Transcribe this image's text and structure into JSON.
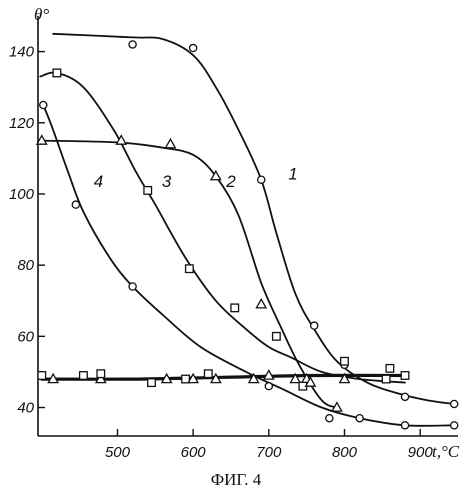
{
  "caption": "ФИГ. 4",
  "chart_data": {
    "type": "line",
    "title": "",
    "xlabel": "t,°C",
    "ylabel": "θ°",
    "xlim": [
      395,
      950
    ],
    "ylim": [
      32,
      150
    ],
    "xticks": [
      500,
      600,
      700,
      800,
      900
    ],
    "yticks": [
      40,
      60,
      80,
      100,
      120,
      140
    ],
    "xtick_labels": [
      "500",
      "600",
      "700",
      "800",
      "900"
    ],
    "ytick_labels": [
      "40",
      "60",
      "80",
      "100",
      "120",
      "140"
    ],
    "grid": false,
    "series": [
      {
        "name": "1",
        "marker": "circle",
        "curve": [
          [
            415,
            145
          ],
          [
            520,
            144
          ],
          [
            560,
            143.5
          ],
          [
            600,
            139
          ],
          [
            630,
            130
          ],
          [
            660,
            118
          ],
          [
            690,
            104
          ],
          [
            710,
            89
          ],
          [
            735,
            72
          ],
          [
            760,
            62
          ],
          [
            790,
            53
          ],
          [
            830,
            47
          ],
          [
            870,
            44
          ],
          [
            910,
            42
          ],
          [
            945,
            41
          ]
        ],
        "points": [
          [
            520,
            142
          ],
          [
            600,
            141
          ],
          [
            690,
            104
          ],
          [
            760,
            63
          ],
          [
            800,
            52
          ],
          [
            880,
            43
          ],
          [
            945,
            41
          ]
        ]
      },
      {
        "name": "2",
        "marker": "triangle",
        "curve": [
          [
            400,
            115
          ],
          [
            500,
            114.5
          ],
          [
            560,
            113
          ],
          [
            600,
            111
          ],
          [
            630,
            105
          ],
          [
            660,
            94
          ],
          [
            690,
            75
          ],
          [
            715,
            63
          ],
          [
            740,
            52
          ],
          [
            770,
            42
          ],
          [
            790,
            40
          ]
        ],
        "points": [
          [
            400,
            115
          ],
          [
            505,
            115
          ],
          [
            570,
            114
          ],
          [
            630,
            105
          ],
          [
            690,
            69
          ],
          [
            750,
            48
          ],
          [
            790,
            40
          ]
        ]
      },
      {
        "name": "3",
        "marker": "square",
        "curve": [
          [
            398,
            133
          ],
          [
            420,
            134
          ],
          [
            455,
            130
          ],
          [
            495,
            118
          ],
          [
            525,
            106
          ],
          [
            550,
            97
          ],
          [
            590,
            82
          ],
          [
            630,
            70
          ],
          [
            670,
            62
          ],
          [
            700,
            57
          ],
          [
            730,
            54
          ],
          [
            770,
            50
          ],
          [
            820,
            48
          ],
          [
            880,
            47
          ]
        ],
        "points": [
          [
            420,
            134
          ],
          [
            540,
            101
          ],
          [
            595,
            79
          ],
          [
            655,
            68
          ],
          [
            710,
            60
          ],
          [
            800,
            53
          ],
          [
            860,
            51
          ],
          [
            880,
            49
          ]
        ]
      },
      {
        "name": "4",
        "marker": "circle",
        "curve": [
          [
            402,
            125
          ],
          [
            415,
            118
          ],
          [
            435,
            106
          ],
          [
            455,
            95
          ],
          [
            490,
            82
          ],
          [
            520,
            74
          ],
          [
            560,
            66
          ],
          [
            610,
            57
          ],
          [
            670,
            50
          ],
          [
            720,
            45
          ],
          [
            770,
            40
          ],
          [
            820,
            37
          ],
          [
            880,
            35
          ],
          [
            945,
            35
          ]
        ],
        "points": [
          [
            402,
            125
          ],
          [
            445,
            97
          ],
          [
            520,
            74
          ],
          [
            700,
            46
          ],
          [
            780,
            37
          ],
          [
            820,
            37
          ],
          [
            880,
            35
          ],
          [
            945,
            35
          ]
        ]
      },
      {
        "name": "",
        "marker": "mixed",
        "curve": [
          [
            400,
            48
          ],
          [
            520,
            48
          ],
          [
            640,
            48.5
          ],
          [
            760,
            49
          ],
          [
            880,
            49
          ]
        ],
        "points": [
          {
            "m": "square",
            "x": 400,
            "y": 49
          },
          {
            "m": "triangle",
            "x": 415,
            "y": 48
          },
          {
            "m": "square",
            "x": 455,
            "y": 49
          },
          {
            "m": "triangle",
            "x": 478,
            "y": 48
          },
          {
            "m": "square",
            "x": 478,
            "y": 49.5
          },
          {
            "m": "square",
            "x": 545,
            "y": 47
          },
          {
            "m": "triangle",
            "x": 565,
            "y": 48
          },
          {
            "m": "square",
            "x": 590,
            "y": 48
          },
          {
            "m": "triangle",
            "x": 600,
            "y": 48
          },
          {
            "m": "square",
            "x": 620,
            "y": 49.5
          },
          {
            "m": "triangle",
            "x": 630,
            "y": 48
          },
          {
            "m": "triangle",
            "x": 680,
            "y": 48
          },
          {
            "m": "triangle",
            "x": 700,
            "y": 49
          },
          {
            "m": "triangle",
            "x": 735,
            "y": 48
          },
          {
            "m": "square",
            "x": 745,
            "y": 46
          },
          {
            "m": "triangle",
            "x": 755,
            "y": 47
          },
          {
            "m": "triangle",
            "x": 800,
            "y": 48
          },
          {
            "m": "square",
            "x": 855,
            "y": 48
          }
        ]
      }
    ],
    "curve_labels": [
      {
        "text": "1",
        "x": 732,
        "y": 104
      },
      {
        "text": "2",
        "x": 650,
        "y": 102
      },
      {
        "text": "3",
        "x": 565,
        "y": 102
      },
      {
        "text": "4",
        "x": 475,
        "y": 102
      }
    ]
  }
}
